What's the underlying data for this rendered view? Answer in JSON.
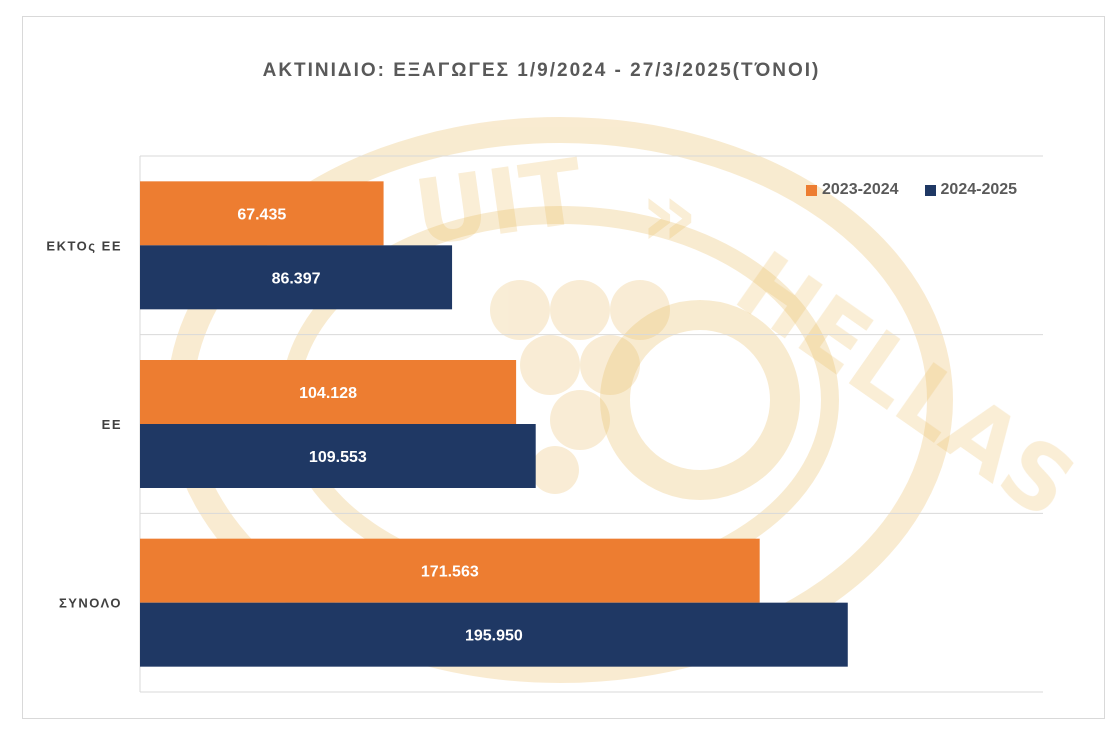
{
  "chart_data": {
    "type": "bar",
    "orientation": "horizontal",
    "title": "ΑΚΤΙΝΙΔΙΟ: ΕΞΑΓΩΓΕΣ 1/9/2024 - 27/3/2025(ΤΌΝΟΙ)",
    "categories": [
      "ΕΚΤΟς ΕΕ",
      "ΕΕ",
      "ΣΥΝΟΛΟ"
    ],
    "series": [
      {
        "name": "2023-2024",
        "color": "#ed7d31",
        "values": [
          67435,
          104128,
          171563
        ],
        "labels": [
          "67.435",
          "104.128",
          "171.563"
        ]
      },
      {
        "name": "2024-2025",
        "color": "#1f3864",
        "values": [
          86397,
          109553,
          195950
        ],
        "labels": [
          "86.397",
          "109.553",
          "195.950"
        ]
      }
    ],
    "xlim": [
      0,
      250000
    ],
    "grid": true,
    "legend_position": "top-right",
    "watermark": "FRUIT » HELLAS"
  }
}
